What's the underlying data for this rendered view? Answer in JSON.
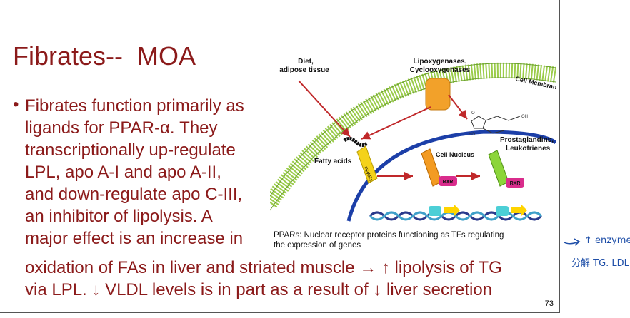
{
  "slide": {
    "title": "Fibrates--  MOA",
    "bullet_lines": [
      "Fibrates function primarily as",
      "ligands for PPAR-α. They",
      "transcriptionally up-regulate",
      "LPL, apo A-I and apo A-II,",
      "and down-regulate apo C-III,",
      "an inhibitor of lipolysis. A",
      "major effect is an increase in",
      "oxidation of FAs in liver and striated muscle → ↑ lipolysis of TG",
      "via LPL. ↓ VLDL levels is in part as a result of ↓ liver secretion"
    ],
    "page_number": "73",
    "accent_color": "#8b1a1a"
  },
  "diagram": {
    "labels": {
      "diet": "Diet,",
      "adipose": "adipose tissue",
      "lipoxy": "Lipoxygenases,",
      "cyclo": "Cyclooxygenases",
      "membrane": "Cell Membrane",
      "prosta": "Prostaglandins,",
      "leuko": "Leukotrienes",
      "nucleus": "Cell Nucleus",
      "fatty": "Fatty acids",
      "ppar": "PPARs",
      "rxr": "RXR",
      "ho": "HO",
      "oh": "OH",
      "o": "O"
    },
    "caption_lines": [
      "PPARs: Nuclear receptor proteins functioning as TFs regulating",
      "the expression of genes"
    ]
  },
  "annotation": {
    "line1": "↑ enzyme",
    "line2": "分解 TG. LDL",
    "color": "#1f4fa8"
  }
}
